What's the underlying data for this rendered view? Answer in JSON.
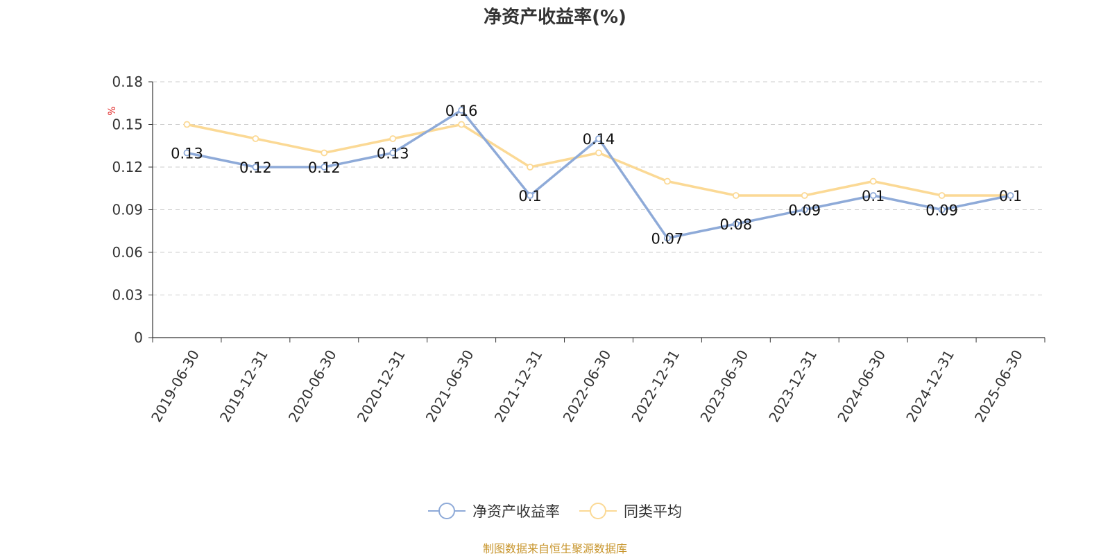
{
  "chart_data": {
    "type": "line",
    "title": "净资产收益率(%)",
    "ylabel": "%",
    "xlabel": "",
    "ylim": [
      0,
      0.18
    ],
    "yticks": [
      "0",
      "0.03",
      "0.06",
      "0.09",
      "0.12",
      "0.15",
      "0.18"
    ],
    "categories": [
      "2019-06-30",
      "2019-12-31",
      "2020-06-30",
      "2020-12-31",
      "2021-06-30",
      "2021-12-31",
      "2022-06-30",
      "2022-12-31",
      "2023-06-30",
      "2023-12-31",
      "2024-06-30",
      "2024-12-31",
      "2025-06-30"
    ],
    "series": [
      {
        "name": "净资产收益率",
        "color": "#8eaad8",
        "show_labels": true,
        "values": [
          0.13,
          0.12,
          0.12,
          0.13,
          0.16,
          0.1,
          0.14,
          0.07,
          0.08,
          0.09,
          0.1,
          0.09,
          0.1
        ]
      },
      {
        "name": "同类平均",
        "color": "#fbd995",
        "show_labels": false,
        "values": [
          0.15,
          0.14,
          0.13,
          0.14,
          0.15,
          0.12,
          0.13,
          0.11,
          0.1,
          0.1,
          0.11,
          0.1,
          0.1
        ]
      }
    ],
    "grid": true,
    "legend_position": "bottom"
  },
  "source_note": "制图数据来自恒生聚源数据库"
}
